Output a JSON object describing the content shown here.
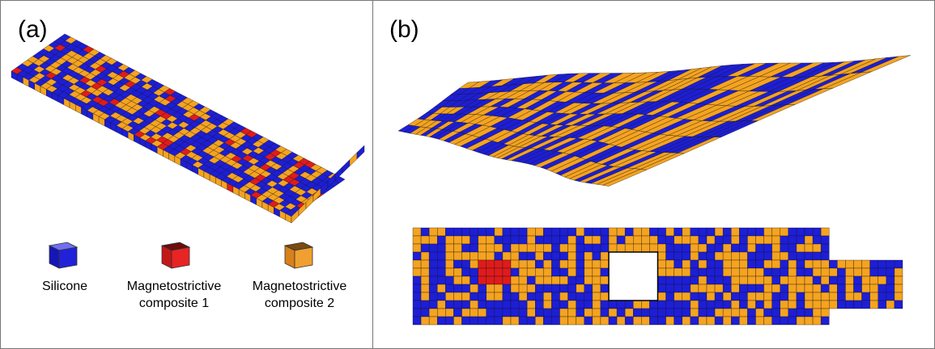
{
  "panels": {
    "a": {
      "label": "(a)"
    },
    "b": {
      "label": "(b)"
    }
  },
  "legend": [
    {
      "label": "Silicone",
      "color": "#1d1ed6"
    },
    {
      "label": "Magnetostrictive\ncomposite 1",
      "color": "#e01b1b"
    },
    {
      "label": "Magnetostrictive\ncomposite 2",
      "color": "#f5a320"
    }
  ],
  "colors": {
    "silicone": "#1d1ed6",
    "composite1": "#e01b1b",
    "composite2": "#f5a320",
    "edge": "#111111"
  }
}
